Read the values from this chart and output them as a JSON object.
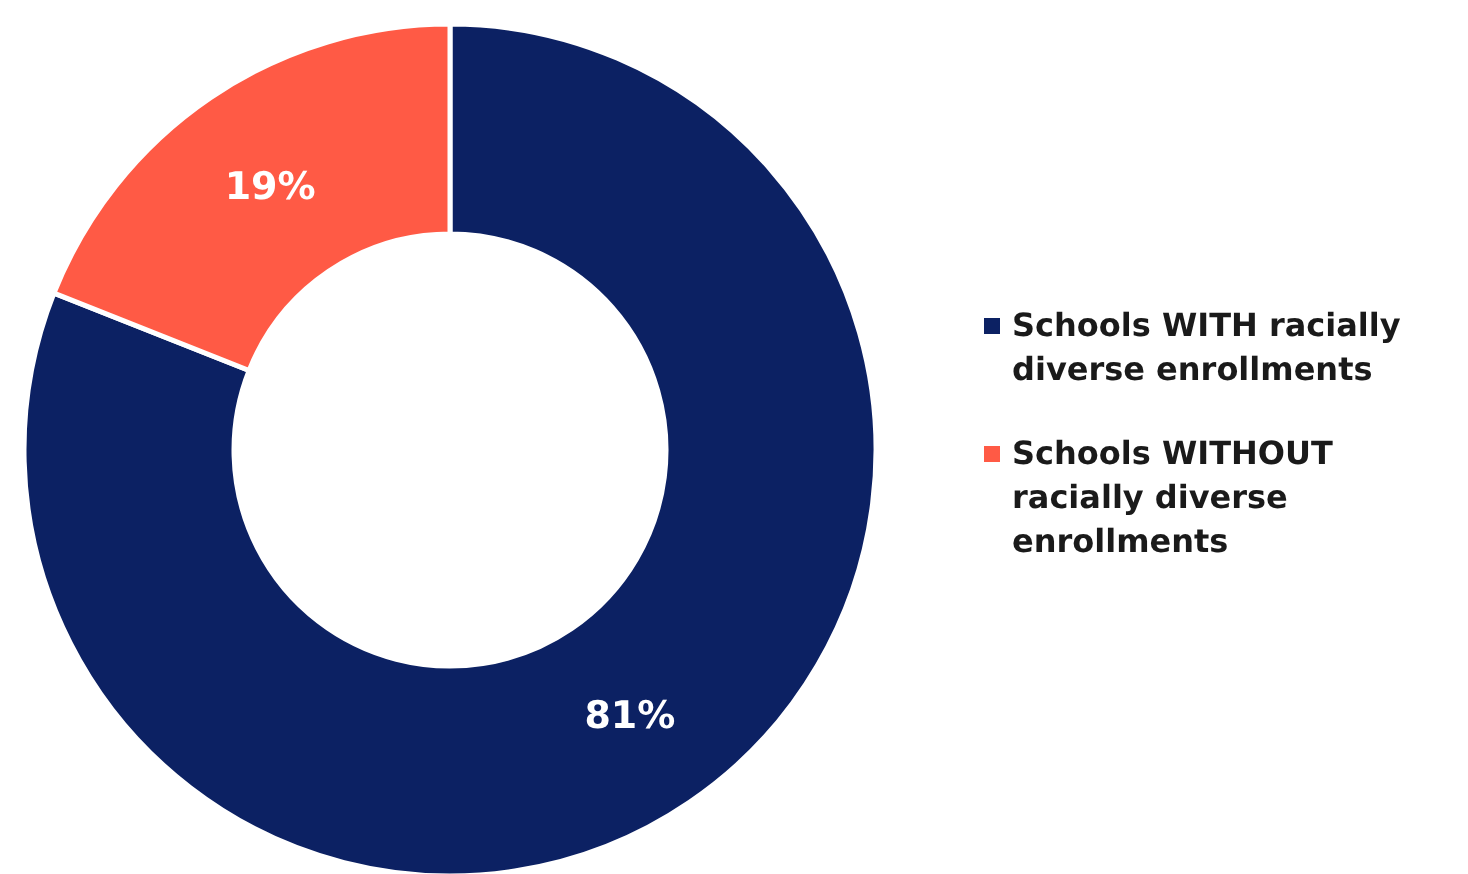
{
  "chart_data": {
    "type": "donut",
    "categories": [
      "Schools WITH racially diverse enrollments",
      "Schools WITHOUT racially diverse enrollments"
    ],
    "values": [
      81,
      19
    ],
    "colors": [
      "#0c2163",
      "#ff5a45"
    ],
    "value_labels": [
      "81%",
      "19%"
    ],
    "legend": "right"
  }
}
